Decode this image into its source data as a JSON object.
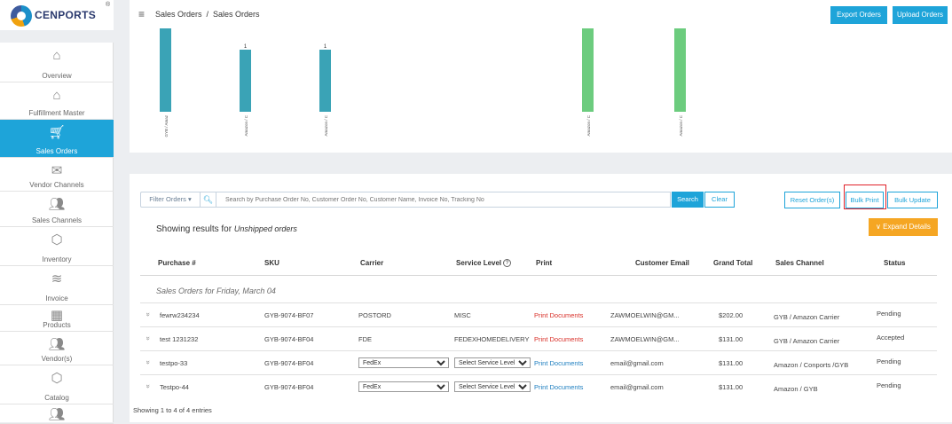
{
  "brand": {
    "name": "CENPORTS",
    "reg": "®"
  },
  "sidebar": {
    "items": [
      {
        "label": "Overview",
        "icon": "home-icon"
      },
      {
        "label": "Fulfillment Master",
        "icon": "home-icon"
      },
      {
        "label": "Sales Orders",
        "icon": "cart-icon",
        "active": true
      },
      {
        "label": "Vendor Channels",
        "icon": "inbox-icon"
      },
      {
        "label": "Sales Channels",
        "icon": "users-icon"
      },
      {
        "label": "Inventory",
        "icon": "box-icon"
      },
      {
        "label": "Invoice",
        "icon": "layers-icon"
      },
      {
        "label": "Products",
        "icon": "grid-icon"
      },
      {
        "label": "Vendor(s)",
        "icon": "users-icon"
      },
      {
        "label": "Catalog",
        "icon": "box-icon"
      },
      {
        "label": "",
        "icon": "users-icon"
      }
    ]
  },
  "header": {
    "breadcrumb": "Sales Orders  /  Sales Orders",
    "export_label": "Export Orders",
    "upload_label": "Upload Orders"
  },
  "chart_data": {
    "type": "bar",
    "categories": [
      "GYB / Amaz",
      "Amazon / C",
      "Amazon / C",
      "Amazon / C",
      "Amazon / C"
    ],
    "values": [
      null,
      1,
      1,
      null,
      null
    ],
    "data_labels": [
      "",
      "1",
      "1",
      "",
      ""
    ],
    "series_colors": [
      "#3aa3b6",
      "#3aa3b6",
      "#3aa3b6",
      "#6ccc7e",
      "#6ccc7e"
    ],
    "bar_top_clipped": [
      true,
      false,
      false,
      true,
      true
    ]
  },
  "toolbar": {
    "filter_label": "Filter Orders ▾",
    "search_placeholder": "Search by Purchase Order No, Customer Order No, Customer Name, Invoice No, Tracking No",
    "search_label": "Search",
    "clear_label": "Clear",
    "reset_label": "Reset Order(s)",
    "bulk_print_label": "Bulk Print",
    "bulk_update_label": "Bulk Update"
  },
  "results": {
    "prefix": "Showing results for ",
    "filter": "Unshipped orders",
    "expand_label": "Expand Details"
  },
  "table": {
    "headers": [
      "Purchase #",
      "SKU",
      "Carrier",
      "Service Level",
      "Print",
      "Customer Email",
      "Grand Total",
      "Sales Channel",
      "Status"
    ],
    "group_title": "Sales Orders for Friday, March 04",
    "rows": [
      {
        "purchase": "fewrw234234",
        "sku": "GYB-9074-BF07",
        "carrier": "POSTORD",
        "service": "MISC",
        "print": "Print Documents",
        "print_color": "#d9322b",
        "email": "ZAWMOELWIN@GM...",
        "total": "$202.00",
        "channel": "GYB / Amazon Carrier",
        "status": "Pending",
        "editable": false
      },
      {
        "purchase": "test 1231232",
        "sku": "GYB-9074-BF04",
        "carrier": "FDE",
        "service": "FEDEXHOMEDELIVERY",
        "print": "Print Documents",
        "print_color": "#d9322b",
        "email": "ZAWMOELWIN@GM...",
        "total": "$131.00",
        "channel": "GYB / Amazon Carrier",
        "status": "Accepted",
        "editable": false
      },
      {
        "purchase": "testpo-33",
        "sku": "GYB-9074-BF04",
        "carrier": "FedEx",
        "service": "Select Service Level",
        "print": "Print Documents",
        "print_color": "#1e7fc0",
        "email": "email@gmail.com",
        "total": "$131.00",
        "channel": "Amazon / Conports /GYB",
        "status": "Pending",
        "editable": true
      },
      {
        "purchase": "Testpo-44",
        "sku": "GYB-9074-BF04",
        "carrier": "FedEx",
        "service": "Select Service Level",
        "print": "Print Documents",
        "print_color": "#1e7fc0",
        "email": "email@gmail.com",
        "total": "$131.00",
        "channel": "Amazon / GYB",
        "status": "Pending",
        "editable": true
      }
    ],
    "footer": "Showing 1 to 4 of 4 entries"
  },
  "colors": {
    "accent": "#1ea4d9",
    "warning": "#f5a623",
    "highlight": "#e0222a"
  }
}
